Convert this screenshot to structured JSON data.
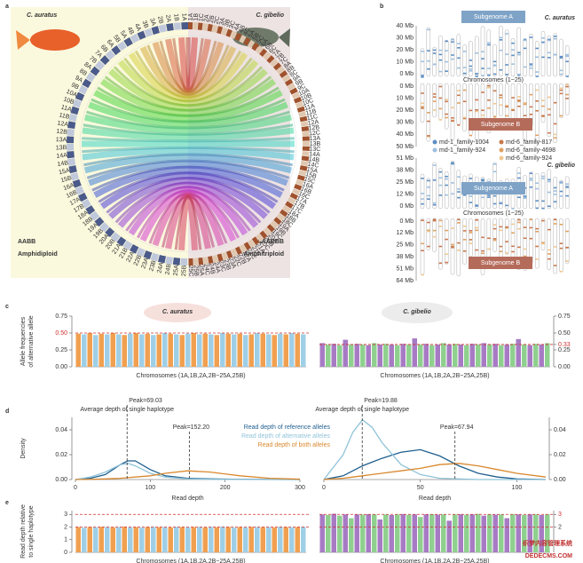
{
  "panel_labels": [
    "a",
    "b",
    "c",
    "d",
    "e"
  ],
  "panel_a": {
    "left_species": "C. auratus",
    "right_species": "C. gibelio",
    "left_genome": "AABB",
    "left_ploidy": "Amphidiploid",
    "right_genome": "AAABBB",
    "right_ploidy": "Amphitriploid",
    "left_chromosomes": [
      "1A",
      "1B",
      "2A",
      "2B",
      "3A",
      "3B",
      "4A",
      "4B",
      "5A",
      "5B",
      "6A",
      "6B",
      "7A",
      "7B",
      "8A",
      "8B",
      "9A",
      "9B",
      "10A",
      "10B",
      "11A",
      "11B",
      "12A",
      "12B",
      "13A",
      "13B",
      "14A",
      "14B",
      "15A",
      "15B",
      "16A",
      "16B",
      "17A",
      "17B",
      "18A",
      "18B",
      "19A",
      "19B",
      "20A",
      "20B",
      "21A",
      "21B",
      "22A",
      "22B",
      "23A",
      "23B",
      "24A",
      "24B",
      "25A",
      "25B"
    ],
    "right_chromosomes": [
      "1A",
      "1B",
      "1C",
      "2A",
      "2B",
      "2C",
      "3A",
      "3B",
      "3C",
      "4A",
      "4B",
      "4C",
      "5A",
      "5B",
      "5C",
      "6A",
      "6B",
      "6C",
      "7A",
      "7B",
      "7C",
      "8A",
      "8B",
      "8C",
      "9A",
      "9B",
      "9C",
      "10A",
      "10B",
      "10C",
      "11A",
      "11B",
      "11C",
      "12A",
      "12B",
      "12C",
      "13A",
      "13B",
      "13C",
      "14A",
      "14B",
      "14C",
      "15A",
      "15B",
      "15C",
      "16A",
      "16B",
      "16C",
      "17A",
      "17B",
      "17C",
      "18A",
      "18B",
      "18C",
      "19A",
      "19B",
      "19C",
      "20A",
      "20B",
      "20C",
      "21A",
      "21B",
      "21C",
      "22A",
      "22B",
      "22C",
      "23A",
      "23B",
      "23C",
      "24A",
      "24B",
      "24C",
      "25A",
      "25B",
      "25C"
    ]
  },
  "panel_b": {
    "blocks": [
      {
        "species": "C. auratus",
        "subgenome_a": "Subgenome A",
        "subgenome_b": "Subgenome B",
        "xlabel": "Chromosomes (1~25)",
        "upper_ticks": [
          "40 Mb",
          "30 Mb",
          "20 Mb",
          "10 Mb",
          "0 Mb"
        ],
        "lower_ticks": [
          "0 Mb",
          "10 Mb",
          "20 Mb",
          "30 Mb",
          "40 Mb",
          "50 Mb"
        ]
      },
      {
        "species": "C. gibelio",
        "subgenome_a": "Subgenome A",
        "subgenome_b": "Subgenome B",
        "xlabel": "Chromosomes (1~25)",
        "upper_ticks": [
          "51 Mb",
          "38 Mb",
          "25 Mb",
          "12 Mb",
          "0 Mb"
        ],
        "lower_ticks": [
          "0 Mb",
          "12 Mb",
          "25 Mb",
          "38 Mb",
          "51 Mb",
          "64 Mb"
        ]
      }
    ],
    "legend": [
      {
        "name": "md-1_family-1004",
        "color": "#5b8ec4"
      },
      {
        "name": "md-1_family-924",
        "color": "#9dbfe0"
      },
      {
        "name": "md-6_family-817",
        "color": "#c8774a"
      },
      {
        "name": "md-6_family-4698",
        "color": "#e0a060"
      },
      {
        "name": "md-6_family-924",
        "color": "#f0c890"
      }
    ]
  },
  "chart_data": [
    {
      "type": "bar",
      "title": "C. auratus",
      "ylabel": [
        "Allele frequencies",
        "of alternative allele"
      ],
      "xlabel": "Chromosomes (1A,1B,2A,2B~25A,25B)",
      "ylim": [
        0,
        0.75
      ],
      "yticks": [
        {
          "value": 0,
          "label": "0.00"
        },
        0.25,
        {
          "value": 0.5,
          "label": "0.50",
          "color": "#d03030"
        },
        0.75
      ],
      "yaxis_side": "left",
      "reference_lines": [
        0.5
      ],
      "reference_color": "#d03030",
      "colors": [
        "#f0a050",
        "#9fcfe6"
      ],
      "values": [
        0.49,
        0.48,
        0.5,
        0.47,
        0.49,
        0.48,
        0.5,
        0.48,
        0.47,
        0.49,
        0.5,
        0.48,
        0.49,
        0.47,
        0.48,
        0.5,
        0.49,
        0.48,
        0.47,
        0.49,
        0.5,
        0.48,
        0.49,
        0.48,
        0.47,
        0.5,
        0.49,
        0.48,
        0.49,
        0.47,
        0.48,
        0.5,
        0.49,
        0.48,
        0.47,
        0.49,
        0.48,
        0.5,
        0.49,
        0.48
      ]
    },
    {
      "type": "bar",
      "title": "C. gibelio",
      "xlabel": "Chromosomes (1A,1B,2A,2B~25A,25B)",
      "ylim": [
        0,
        0.75
      ],
      "yticks": [
        {
          "value": 0,
          "label": "0.00"
        },
        0.25,
        {
          "value": 0.33,
          "label": "0.33",
          "color": "#d03030"
        },
        {
          "value": 0.5,
          "label": "0.50"
        },
        0.75
      ],
      "yaxis_side": "right",
      "reference_lines": [
        0.33
      ],
      "reference_color": "#d03030",
      "colors": [
        "#a77bc4",
        "#8fd08f"
      ],
      "values": [
        0.35,
        0.33,
        0.34,
        0.32,
        0.4,
        0.33,
        0.34,
        0.33,
        0.32,
        0.35,
        0.33,
        0.34,
        0.33,
        0.32,
        0.34,
        0.33,
        0.42,
        0.33,
        0.34,
        0.32,
        0.33,
        0.35,
        0.33,
        0.34,
        0.33,
        0.32,
        0.34,
        0.33,
        0.35,
        0.33,
        0.34,
        0.32,
        0.33,
        0.34,
        0.41,
        0.33,
        0.32,
        0.34,
        0.33,
        0.35
      ]
    },
    {
      "type": "line",
      "ylabel": [
        "Density"
      ],
      "xlabel": "Read depth",
      "xlim": [
        0,
        300
      ],
      "xticks": [
        0,
        100,
        200,
        300
      ],
      "ylim": [
        0,
        0.05
      ],
      "yticks": [
        {
          "value": 0,
          "label": "0.00"
        },
        0.02,
        0.04
      ],
      "yaxis_side": "left",
      "legend": "right",
      "x": [
        0,
        20,
        40,
        60,
        70,
        80,
        100,
        120,
        150,
        180,
        220,
        260,
        300
      ],
      "series": [
        {
          "name": "Read depth of reference alleles",
          "color": "#1f5f8f",
          "values": [
            0,
            0.001,
            0.004,
            0.012,
            0.015,
            0.015,
            0.008,
            0.003,
            0.001,
            0.0005,
            0.0002,
            0.0001,
            0
          ]
        },
        {
          "name": "Read depth of alternative alleles",
          "color": "#8fc3d8",
          "values": [
            0,
            0.002,
            0.006,
            0.012,
            0.013,
            0.011,
            0.005,
            0.002,
            0.0005,
            0.0002,
            0.0001,
            0,
            0
          ]
        },
        {
          "name": "Read depth of both alleles",
          "color": "#d9882e",
          "values": [
            0,
            0.0002,
            0.0005,
            0.001,
            0.0015,
            0.002,
            0.003,
            0.005,
            0.007,
            0.006,
            0.003,
            0.001,
            0.0003
          ]
        }
      ],
      "peaks": [
        {
          "x": 69.03,
          "label": "Peak=69.03",
          "note": "Average depth of single haplotype"
        },
        {
          "x": 152.2,
          "label": "Peak=152.20"
        }
      ]
    },
    {
      "type": "line",
      "xlabel": "Read depth",
      "xlim": [
        0,
        115
      ],
      "xticks": [
        0,
        50,
        100
      ],
      "ylim": [
        0,
        0.05
      ],
      "yticks": [
        {
          "value": 0,
          "label": "0.00"
        },
        0.02,
        0.04
      ],
      "yaxis_side": "right",
      "x": [
        0,
        10,
        15,
        20,
        25,
        30,
        40,
        50,
        60,
        70,
        80,
        90,
        100,
        115
      ],
      "series": [
        {
          "color": "#1f5f8f",
          "values": [
            0,
            0.003,
            0.007,
            0.011,
            0.014,
            0.017,
            0.022,
            0.024,
            0.019,
            0.011,
            0.005,
            0.002,
            0.0005,
            0
          ]
        },
        {
          "color": "#8fc3d8",
          "values": [
            0,
            0.02,
            0.038,
            0.048,
            0.042,
            0.03,
            0.012,
            0.004,
            0.001,
            0.0005,
            0,
            0,
            0,
            0
          ]
        },
        {
          "color": "#d9882e",
          "values": [
            0,
            0.001,
            0.002,
            0.003,
            0.004,
            0.005,
            0.007,
            0.009,
            0.012,
            0.013,
            0.011,
            0.008,
            0.005,
            0.002
          ]
        }
      ],
      "peaks": [
        {
          "x": 19.88,
          "label": "Peak=19.88",
          "note": "Average depth of single haplotype"
        },
        {
          "x": 67.94,
          "label": "Peak=67.94"
        }
      ]
    },
    {
      "type": "bar",
      "ylabel": [
        "Read depth relative",
        "to single haplotype"
      ],
      "xlabel": "Chromosomes (1A,1B,2A,2B~25A,25B)",
      "ylim": [
        0,
        3.3
      ],
      "yticks": [
        0,
        1,
        2,
        3
      ],
      "yaxis_side": "left",
      "reference_lines": [
        2,
        3
      ],
      "reference_color": "#d03030",
      "colors": [
        "#f0a050",
        "#9fcfe6"
      ],
      "values": [
        2,
        1.95,
        2,
        1.98,
        2.02,
        2,
        1.97,
        2,
        2.03,
        1.98,
        2,
        1.96,
        2,
        2.01,
        1.99,
        2,
        1.97,
        2.02,
        2,
        1.98,
        2,
        2.01,
        1.97,
        2,
        1.99,
        2.02,
        2,
        1.96,
        2,
        1.98,
        2.01,
        2,
        1.99,
        2,
        1.97,
        2.02,
        2,
        1.98,
        2,
        2.01
      ]
    },
    {
      "type": "bar",
      "xlabel": "Chromosomes (1A,1B,2A,2B~25A,25B)",
      "ylim": [
        0,
        3.3
      ],
      "yticks": [
        2,
        {
          "value": 3,
          "label": "3",
          "color": "#d03030"
        }
      ],
      "yaxis_side": "right",
      "reference_lines": [
        2,
        3
      ],
      "reference_color": "#d03030",
      "colors": [
        "#a77bc4",
        "#8fd08f"
      ],
      "values": [
        3,
        2.95,
        3.05,
        2.9,
        3,
        2.7,
        3,
        2.98,
        3.02,
        3,
        2.6,
        3,
        2.95,
        3,
        3.03,
        2.97,
        3,
        2.8,
        3,
        3.02,
        2.98,
        3,
        2.5,
        3,
        3.01,
        2.97,
        3,
        3.04,
        2.9,
        3,
        2.98,
        3,
        2.7,
        3.02,
        3,
        2.96,
        3,
        3.01,
        2.95,
        3
      ]
    }
  ],
  "watermark": [
    "织梦内容管理系统",
    "DEDECMS.COM"
  ]
}
